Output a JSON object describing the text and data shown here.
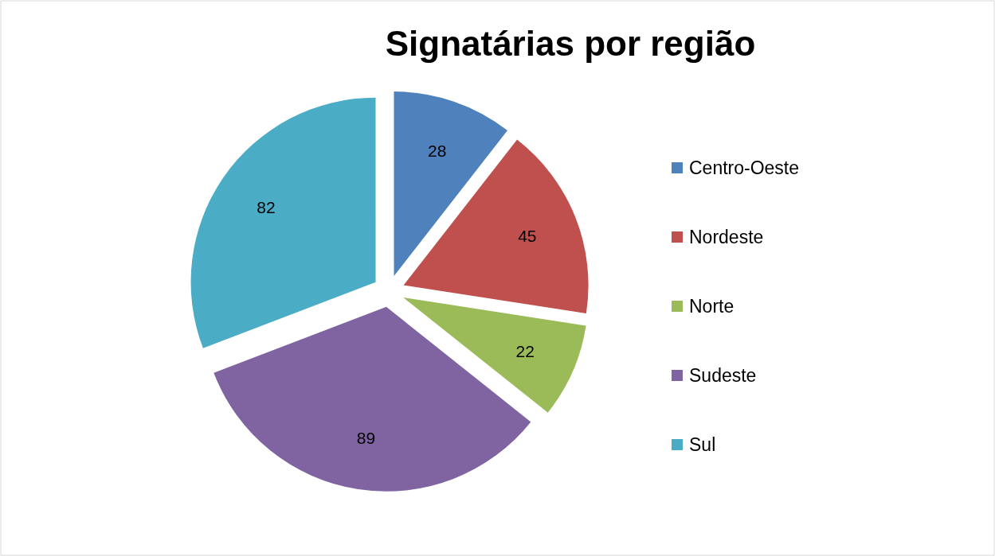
{
  "chart_data": {
    "type": "pie",
    "title": "Signatárias por região",
    "categories": [
      "Centro-Oeste",
      "Nordeste",
      "Norte",
      "Sudeste",
      "Sul"
    ],
    "values": [
      28,
      45,
      22,
      89,
      82
    ],
    "colors": [
      "#4f81bd",
      "#c0504d",
      "#9bbb59",
      "#8064a2",
      "#4bacc6"
    ],
    "data_labels": true,
    "legend": "right"
  }
}
